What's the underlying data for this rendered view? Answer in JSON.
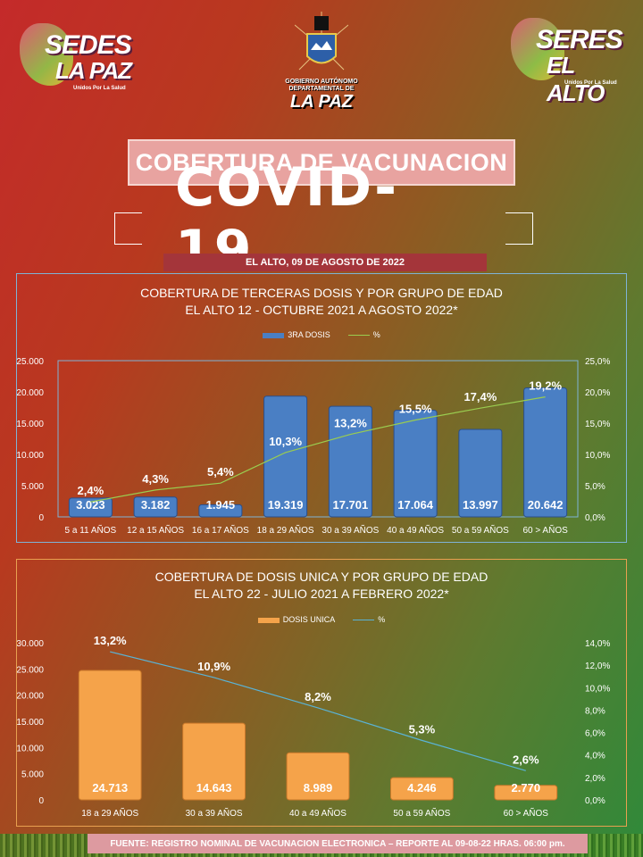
{
  "logos": {
    "left": {
      "line1": "SEDES",
      "line2": "LA PAZ",
      "tagline": "Unidos Por La Salud"
    },
    "right": {
      "line1": "SERES",
      "line2": "EL ALTO",
      "tagline": "Unidos Por La Salud"
    },
    "center": {
      "line1": "GOBIERNO AUTÓNOMO",
      "line2": "DEPARTAMENTAL DE",
      "line3": "LA PAZ"
    }
  },
  "header": {
    "title": "COBERTURA DE VACUNACION",
    "covid": "COVID-19",
    "date": "EL ALTO, 09 DE AGOSTO DE 2022"
  },
  "footer": "FUENTE: REGISTRO NOMINAL DE VACUNACION ELECTRONICA – REPORTE AL 09-08-22 HRAS. 06:00 pm.",
  "colors": {
    "bar1": "#4a7fc4",
    "line1": "#9acd50",
    "bar2": "#f5a34a",
    "line2": "#5ab3d6"
  },
  "chart_data": [
    {
      "type": "bar",
      "title": "COBERTURA DE TERCERAS DOSIS Y POR GRUPO DE EDAD",
      "subtitle": "EL ALTO 12 - OCTUBRE 2021 A AGOSTO 2022*",
      "categories": [
        "5 a 11 AÑOS",
        "12 a 15 AÑOS",
        "16 a 17 AÑOS",
        "18 a 29 AÑOS",
        "30 a 39 AÑOS",
        "40 a 49 AÑOS",
        "50 a 59 AÑOS",
        "60 > AÑOS"
      ],
      "series": [
        {
          "name": "3RA DOSIS",
          "type": "bar",
          "axis": "left",
          "values": [
            3023,
            3182,
            1945,
            19319,
            17701,
            17064,
            13997,
            20642
          ],
          "labels": [
            "3.023",
            "3.182",
            "1.945",
            "19.319",
            "17.701",
            "17.064",
            "13.997",
            "20.642"
          ]
        },
        {
          "name": "%",
          "type": "line",
          "axis": "right",
          "values": [
            2.4,
            4.3,
            5.4,
            10.3,
            13.2,
            15.5,
            17.4,
            19.2
          ],
          "labels": [
            "2,4%",
            "4,3%",
            "5,4%",
            "10,3%",
            "13,2%",
            "15,5%",
            "17,4%",
            "19,2%"
          ]
        }
      ],
      "ylim": [
        0,
        25000
      ],
      "yticks": [
        "0",
        "5.000",
        "10.000",
        "15.000",
        "20.000",
        "25.000"
      ],
      "y2lim": [
        0,
        25
      ],
      "y2ticks": [
        "0,0%",
        "5,0%",
        "10,0%",
        "15,0%",
        "20,0%",
        "25,0%"
      ],
      "legend": "top-center"
    },
    {
      "type": "bar",
      "title": "COBERTURA DE DOSIS UNICA Y POR GRUPO DE EDAD",
      "subtitle": "EL ALTO 22 - JULIO 2021 A FEBRERO 2022*",
      "categories": [
        "18 a 29 AÑOS",
        "30 a 39 AÑOS",
        "40 a 49 AÑOS",
        "50 a 59 AÑOS",
        "60 > AÑOS"
      ],
      "series": [
        {
          "name": "DOSIS UNICA",
          "type": "bar",
          "axis": "left",
          "values": [
            24713,
            14643,
            8989,
            4246,
            2770
          ],
          "labels": [
            "24.713",
            "14.643",
            "8.989",
            "4.246",
            "2.770"
          ]
        },
        {
          "name": "%",
          "type": "line",
          "axis": "right",
          "values": [
            13.2,
            10.9,
            8.2,
            5.3,
            2.6
          ],
          "labels": [
            "13,2%",
            "10,9%",
            "8,2%",
            "5,3%",
            "2,6%"
          ]
        }
      ],
      "ylim": [
        0,
        30000
      ],
      "yticks": [
        "0",
        "5.000",
        "10.000",
        "15.000",
        "20.000",
        "25.000",
        "30.000"
      ],
      "y2lim": [
        0,
        14
      ],
      "y2ticks": [
        "0,0%",
        "2,0%",
        "4,0%",
        "6,0%",
        "8,0%",
        "10,0%",
        "12,0%",
        "14,0%"
      ],
      "legend": "top-center"
    }
  ]
}
